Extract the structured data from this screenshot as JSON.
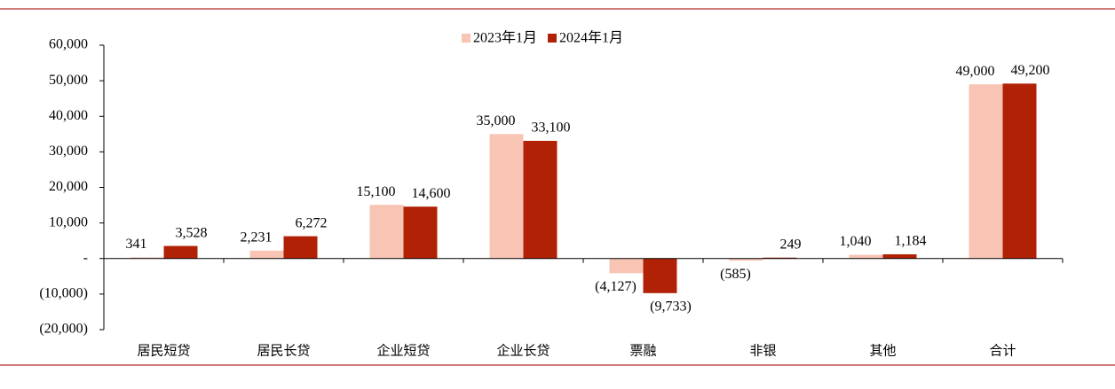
{
  "chart_data": {
    "type": "bar",
    "categories": [
      "居民短贷",
      "居民长贷",
      "企业短贷",
      "企业长贷",
      "票融",
      "非银",
      "其他",
      "合计"
    ],
    "series": [
      {
        "name": "2023年1月",
        "color": "#f8c5b5",
        "values": [
          341,
          2231,
          15100,
          35000,
          -4127,
          -585,
          1040,
          49000
        ],
        "value_labels": [
          "341",
          "2,231",
          "15,100",
          "35,000",
          "(4,127)",
          "(585)",
          "1,040",
          "49,000"
        ]
      },
      {
        "name": "2024年1月",
        "color": "#b02106",
        "values": [
          3528,
          6272,
          14600,
          33100,
          -9733,
          249,
          1184,
          49200
        ],
        "value_labels": [
          "3,528",
          "6,272",
          "14,600",
          "33,100",
          "(9,733)",
          "249",
          "1,184",
          "49,200"
        ]
      }
    ],
    "ylim": [
      -20000,
      60000
    ],
    "yticks": [
      {
        "value": -20000,
        "label": "(20,000)"
      },
      {
        "value": -10000,
        "label": "(10,000)"
      },
      {
        "value": 0,
        "label": "-"
      },
      {
        "value": 10000,
        "label": "10,000"
      },
      {
        "value": 20000,
        "label": "20,000"
      },
      {
        "value": 30000,
        "label": "30,000"
      },
      {
        "value": 40000,
        "label": "40,000"
      },
      {
        "value": 50000,
        "label": "50,000"
      },
      {
        "value": 60000,
        "label": "60,000"
      }
    ],
    "legend": "top"
  }
}
